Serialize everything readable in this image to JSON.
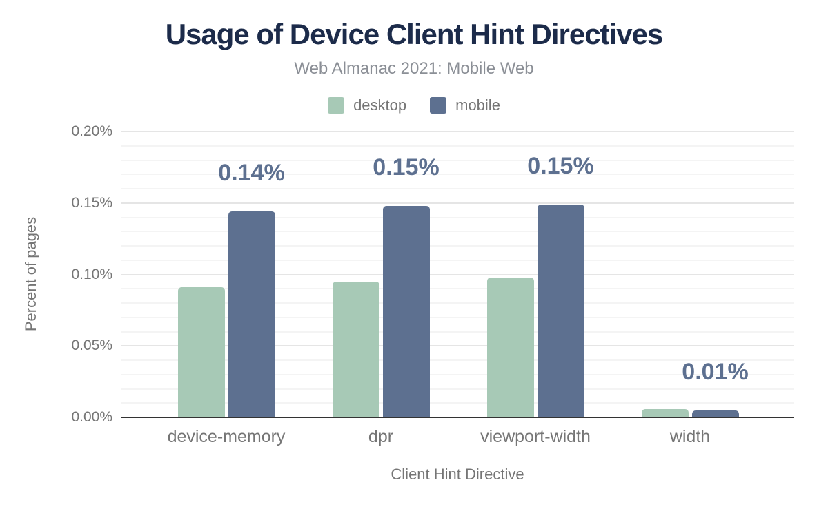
{
  "chart_data": {
    "type": "bar",
    "title": "Usage of Device Client Hint Directives",
    "subtitle": "Web Almanac 2021: Mobile Web",
    "xlabel": "Client Hint Directive",
    "ylabel": "Percent of pages",
    "categories": [
      "device-memory",
      "dpr",
      "viewport-width",
      "width"
    ],
    "series": [
      {
        "name": "desktop",
        "color": "#a7c9b6",
        "values_pct": [
          0.091,
          0.095,
          0.098,
          0.006
        ]
      },
      {
        "name": "mobile",
        "color": "#5d7090",
        "values_pct": [
          0.144,
          0.148,
          0.149,
          0.005
        ],
        "bar_labels": [
          "0.14%",
          "0.15%",
          "0.15%",
          "0.01%"
        ]
      }
    ],
    "ylim": [
      0,
      0.2
    ],
    "y_major_ticks": [
      "0.00%",
      "0.05%",
      "0.10%",
      "0.15%",
      "0.20%"
    ],
    "y_major_step_pct": 0.05,
    "y_minor_step_pct": 0.01,
    "grid": true,
    "legend_position": "top",
    "value_label_color": "#5d7090",
    "title_color": "#1c2b4a",
    "axis_text_color": "#757575",
    "baseline_color": "#333333"
  }
}
